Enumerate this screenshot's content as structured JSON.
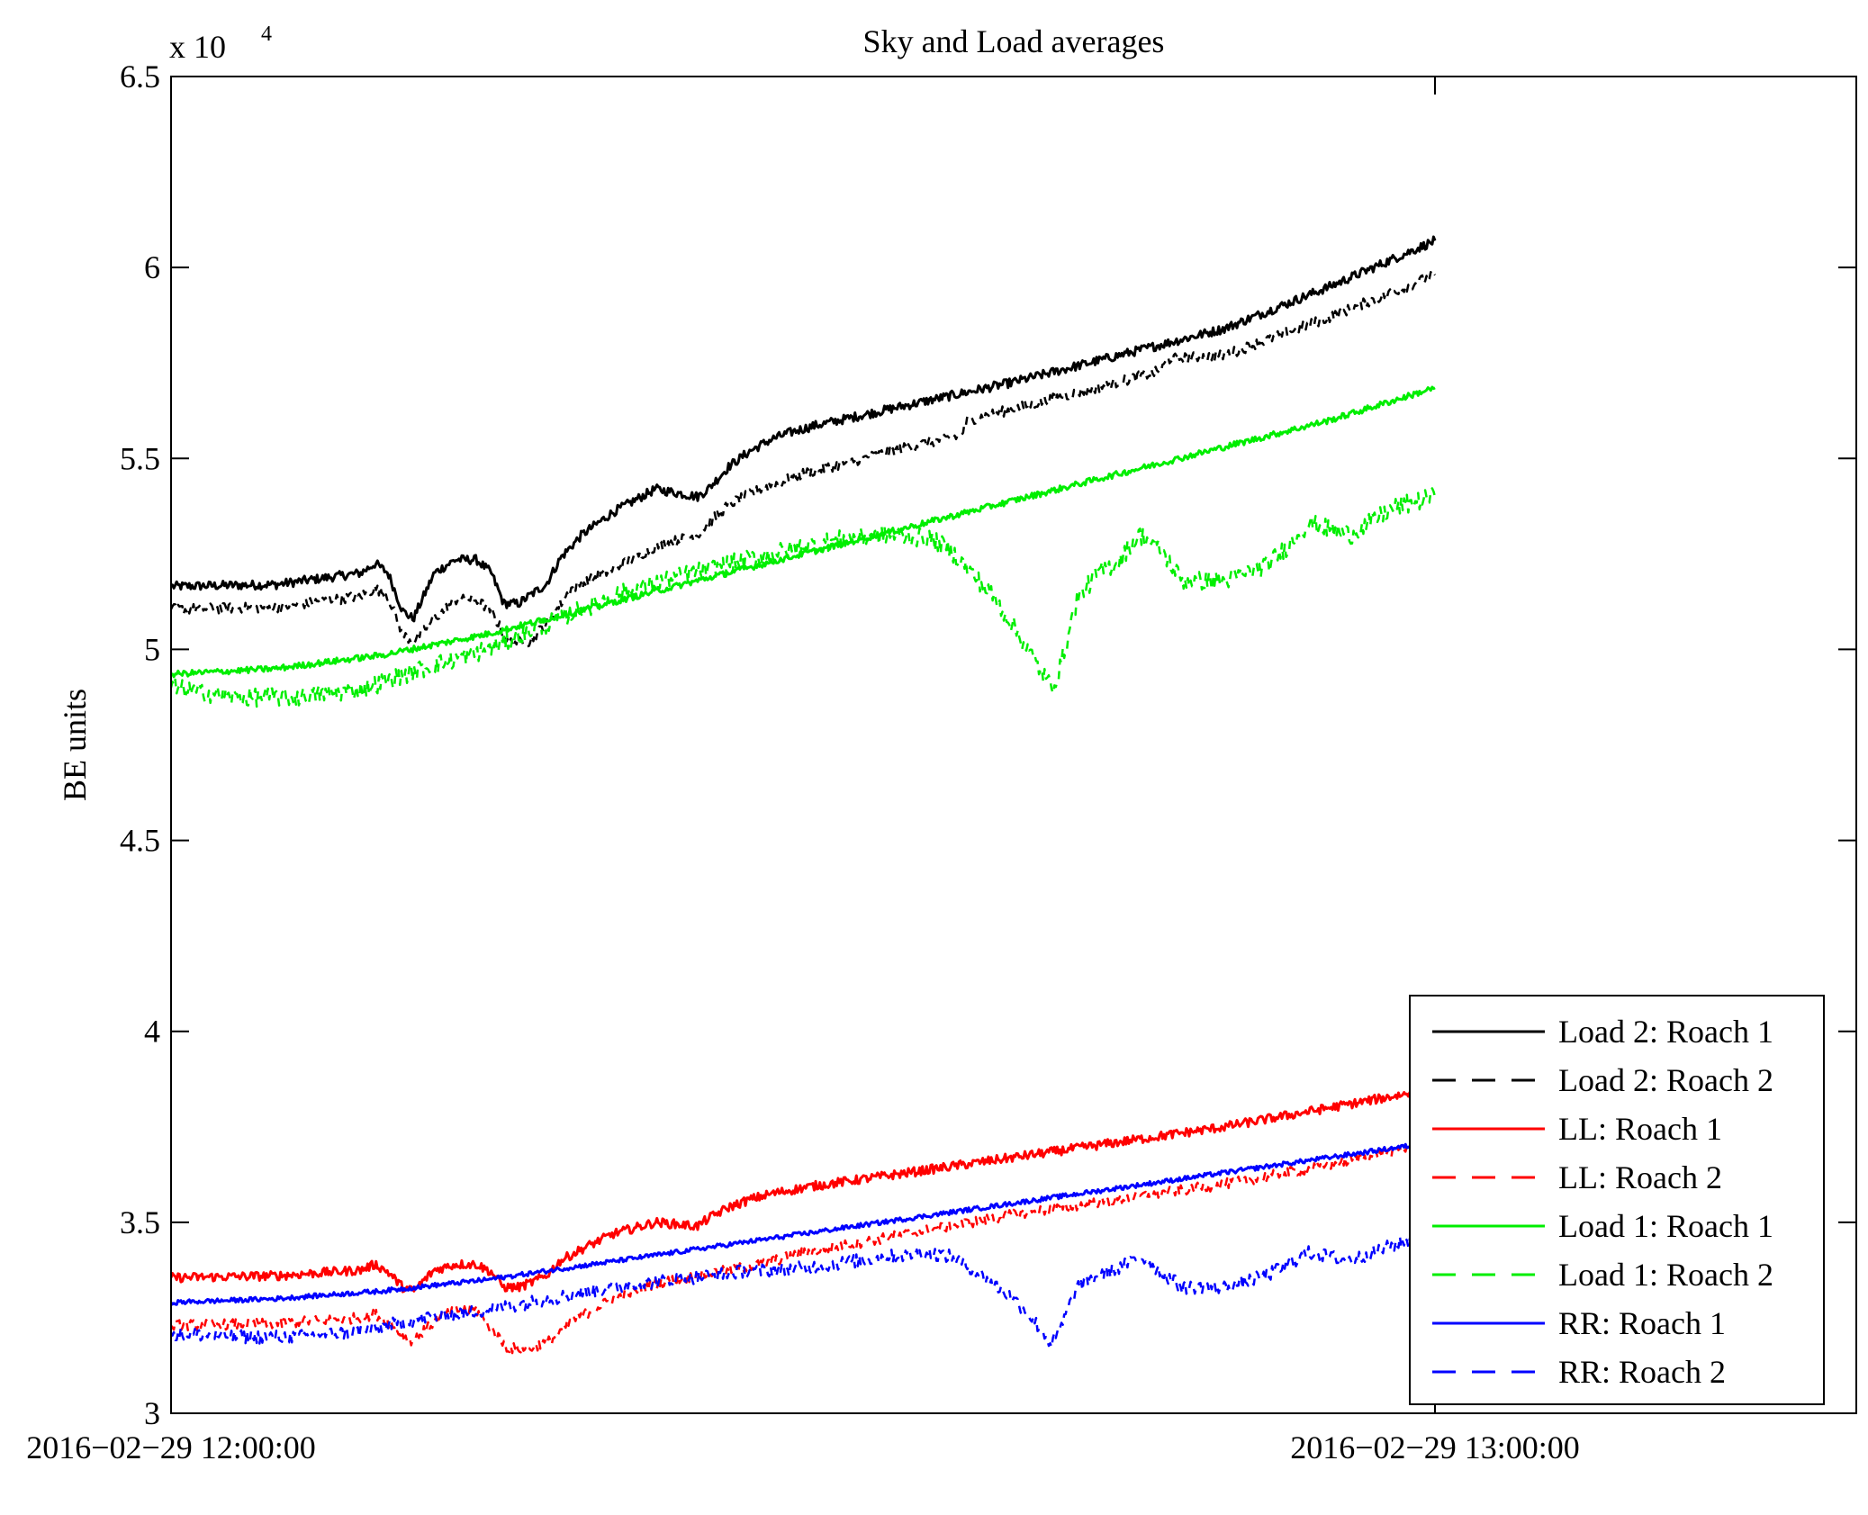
{
  "chart_data": {
    "type": "line",
    "title": "Sky and Load averages",
    "ylabel": "BE units",
    "xlabel": "",
    "y_exponent_label": "x 10",
    "y_exponent_power": "4",
    "ylim": [
      3,
      6.5
    ],
    "y_ticks": [
      3,
      3.5,
      4,
      4.5,
      5,
      5.5,
      6,
      6.5
    ],
    "y_tick_labels": [
      "3",
      "3.5",
      "4",
      "4.5",
      "5",
      "5.5",
      "6",
      "6.5"
    ],
    "xlim": [
      0,
      80
    ],
    "x_ticks": [
      0,
      60
    ],
    "x_tick_labels": [
      "2016−02−29 12:00:00",
      "2016−02−29 13:00:00"
    ],
    "x_unit": "minutes after 2016-02-29 12:00:00",
    "legend_position": "bottom-right",
    "series": [
      {
        "name": "Load 2: Roach 1",
        "color": "#000000",
        "dash": "solid",
        "width": 3,
        "noise": 0.012,
        "x": [
          0,
          5,
          9,
          9.7,
          10.3,
          11,
          11.5,
          12.5,
          13.5,
          14.5,
          15.2,
          15.8,
          16.5,
          17,
          17.8,
          18.5,
          19.5,
          21,
          23,
          25,
          25.5,
          26.5,
          27.5,
          28.5,
          29.5,
          30.5,
          35,
          40,
          45,
          50,
          55,
          60
        ],
        "y": [
          5.165,
          5.17,
          5.2,
          5.225,
          5.2,
          5.1,
          5.08,
          5.2,
          5.235,
          5.235,
          5.2,
          5.12,
          5.12,
          5.14,
          5.17,
          5.24,
          5.3,
          5.36,
          5.42,
          5.4,
          5.42,
          5.48,
          5.52,
          5.55,
          5.57,
          5.585,
          5.64,
          5.7,
          5.77,
          5.84,
          5.95,
          6.07
        ]
      },
      {
        "name": "Load 2: Roach 2",
        "color": "#000000",
        "dash": "dashed",
        "width": 2.5,
        "noise": 0.014,
        "x": [
          0,
          5,
          9,
          9.7,
          10.3,
          11,
          11.5,
          12.5,
          13.5,
          14.5,
          15.2,
          16,
          17,
          18,
          19,
          21,
          23,
          25,
          25.5,
          26.5,
          28,
          30,
          35,
          37.5,
          37.8,
          40,
          45,
          47,
          47.3,
          50,
          55,
          60
        ],
        "y": [
          5.105,
          5.11,
          5.14,
          5.16,
          5.14,
          5.04,
          5.02,
          5.08,
          5.13,
          5.13,
          5.1,
          5.02,
          5.02,
          5.08,
          5.16,
          5.21,
          5.27,
          5.3,
          5.33,
          5.38,
          5.42,
          5.46,
          5.53,
          5.56,
          5.6,
          5.63,
          5.7,
          5.73,
          5.76,
          5.77,
          5.87,
          5.98
        ]
      },
      {
        "name": "LL: Roach 1",
        "color": "#ff0000",
        "dash": "solid",
        "width": 3,
        "noise": 0.012,
        "x": [
          0,
          5,
          9,
          9.7,
          10.3,
          11,
          11.5,
          12.5,
          13.5,
          14.5,
          15.2,
          15.8,
          16.5,
          17,
          17.8,
          18.5,
          19.5,
          21,
          23,
          25,
          25.5,
          26.5,
          27.5,
          28.5,
          29.5,
          30.5,
          35,
          40,
          45,
          50,
          55,
          60
        ],
        "y": [
          3.355,
          3.36,
          3.375,
          3.39,
          3.37,
          3.33,
          3.32,
          3.375,
          3.39,
          3.39,
          3.37,
          3.33,
          3.33,
          3.34,
          3.36,
          3.4,
          3.43,
          3.47,
          3.5,
          3.49,
          3.51,
          3.54,
          3.56,
          3.575,
          3.585,
          3.595,
          3.63,
          3.67,
          3.71,
          3.75,
          3.8,
          3.85
        ]
      },
      {
        "name": "LL: Roach 2",
        "color": "#ff0000",
        "dash": "dashed",
        "width": 2.5,
        "noise": 0.014,
        "x": [
          0,
          5,
          9,
          9.7,
          10.3,
          11,
          11.5,
          12.5,
          13.5,
          14.5,
          15.2,
          16,
          17,
          18,
          19,
          21,
          23,
          25,
          28,
          30,
          35,
          40,
          45,
          50,
          55,
          60
        ],
        "y": [
          3.23,
          3.235,
          3.25,
          3.26,
          3.24,
          3.2,
          3.19,
          3.24,
          3.27,
          3.27,
          3.22,
          3.17,
          3.17,
          3.19,
          3.24,
          3.3,
          3.34,
          3.36,
          3.39,
          3.42,
          3.47,
          3.52,
          3.56,
          3.6,
          3.65,
          3.71
        ]
      },
      {
        "name": "Load 1: Roach 1",
        "color": "#00ee00",
        "dash": "solid",
        "width": 3,
        "noise": 0.008,
        "x": [
          0,
          5,
          10,
          15,
          20,
          25,
          30,
          35,
          40,
          45,
          50,
          55,
          60
        ],
        "y": [
          4.935,
          4.95,
          4.985,
          5.04,
          5.11,
          5.18,
          5.25,
          5.32,
          5.39,
          5.46,
          5.53,
          5.6,
          5.685
        ]
      },
      {
        "name": "Load 1: Roach 2",
        "color": "#00ee00",
        "dash": "dashed",
        "width": 2.5,
        "noise": 0.025,
        "x": [
          0,
          3,
          6,
          9,
          12,
          15,
          18,
          21,
          24,
          27,
          30,
          32,
          34,
          36,
          37,
          38,
          39,
          40,
          41,
          41.8,
          42.2,
          43,
          44,
          45,
          45.5,
          46,
          47,
          48,
          50,
          52,
          53,
          54,
          56,
          58,
          60
        ],
        "y": [
          4.9,
          4.875,
          4.875,
          4.895,
          4.95,
          5.0,
          5.07,
          5.14,
          5.19,
          5.23,
          5.27,
          5.29,
          5.3,
          5.29,
          5.26,
          5.2,
          5.14,
          5.06,
          4.97,
          4.9,
          4.95,
          5.13,
          5.2,
          5.23,
          5.27,
          5.3,
          5.26,
          5.18,
          5.18,
          5.22,
          5.27,
          5.33,
          5.3,
          5.37,
          5.4
        ]
      },
      {
        "name": "RR: Roach 1",
        "color": "#0000ff",
        "dash": "solid",
        "width": 3,
        "noise": 0.006,
        "x": [
          0,
          5,
          10,
          15,
          20,
          25,
          30,
          35,
          40,
          45,
          50,
          55,
          60
        ],
        "y": [
          3.29,
          3.3,
          3.32,
          3.35,
          3.39,
          3.43,
          3.47,
          3.51,
          3.55,
          3.59,
          3.63,
          3.67,
          3.71
        ]
      },
      {
        "name": "RR: Roach 2",
        "color": "#0000ff",
        "dash": "dashed",
        "width": 2.5,
        "noise": 0.018,
        "x": [
          0,
          3,
          6,
          9,
          12,
          15,
          18,
          21,
          24,
          27,
          30,
          32,
          34,
          36,
          37,
          38,
          39,
          40,
          41,
          41.8,
          42.2,
          43,
          44,
          45,
          45.5,
          46,
          47,
          48,
          50,
          52,
          53,
          54,
          56,
          58,
          60
        ],
        "y": [
          3.21,
          3.2,
          3.2,
          3.215,
          3.25,
          3.27,
          3.3,
          3.33,
          3.35,
          3.37,
          3.38,
          3.395,
          3.41,
          3.42,
          3.41,
          3.38,
          3.34,
          3.3,
          3.24,
          3.18,
          3.22,
          3.33,
          3.36,
          3.38,
          3.395,
          3.41,
          3.37,
          3.33,
          3.33,
          3.36,
          3.39,
          3.42,
          3.4,
          3.44,
          3.47
        ]
      }
    ]
  }
}
